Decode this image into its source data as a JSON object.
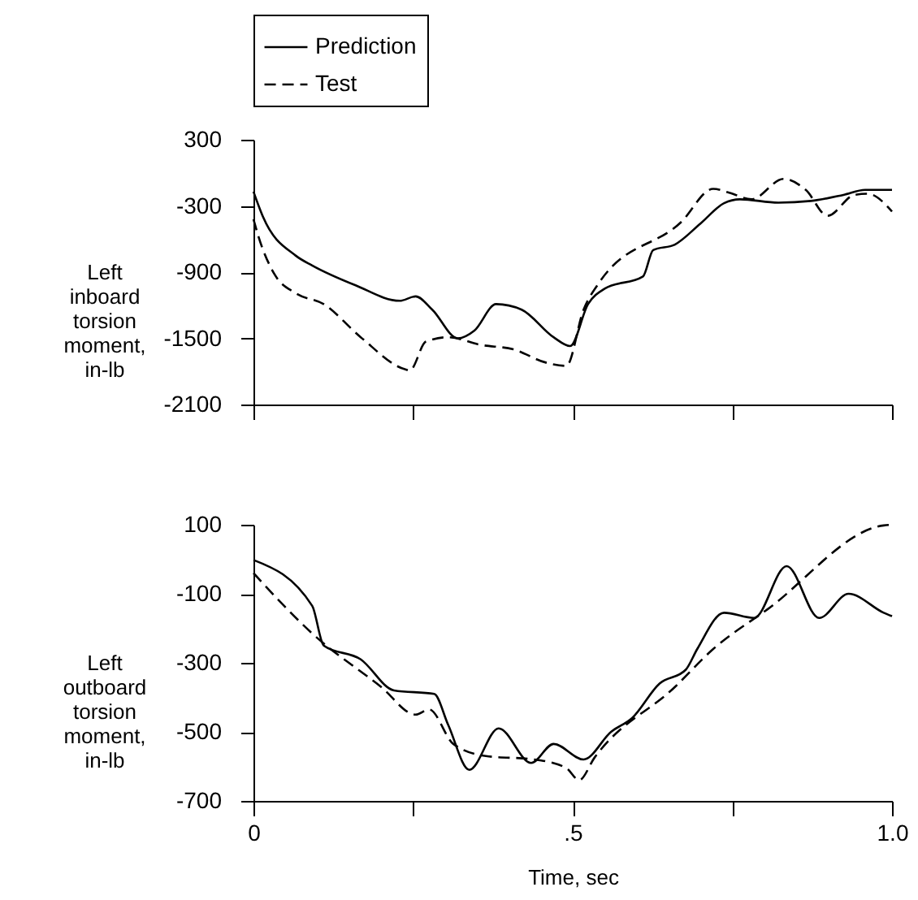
{
  "chart_data": [
    {
      "type": "line",
      "ylabel": "Left\ninboard\ntorsion\nmoment,\nin-lb",
      "legend": "top",
      "tick_labels": "y",
      "xlim": [
        0,
        1
      ],
      "xticks": [
        {
          "value": 0,
          "label": null
        },
        {
          "value": 0.25,
          "label": null
        },
        {
          "value": 0.5,
          "label": null
        },
        {
          "value": 0.75,
          "label": null
        },
        {
          "value": 1,
          "label": null
        }
      ],
      "ylim": [
        -2100,
        300
      ],
      "yticks": [
        300,
        -300,
        -900,
        -1500,
        -2100
      ],
      "grid": false,
      "series": [
        {
          "name": "Prediction",
          "color": "#000000",
          "line_style": "solid",
          "x": [
            0,
            0.015,
            0.066,
            0.092,
            0.16,
            0.229,
            0.254,
            0.28,
            0.32,
            0.346,
            0.38,
            0.42,
            0.47,
            0.496,
            0.524,
            0.55,
            0.61,
            0.626,
            0.66,
            0.7,
            0.737,
            0.762,
            0.822,
            0.873,
            0.924,
            0.958,
            1.0
          ],
          "values": [
            -170,
            -400,
            -750,
            -840,
            -1020,
            -1160,
            -1120,
            -1240,
            -1500,
            -1430,
            -1190,
            -1240,
            -1490,
            -1570,
            -1190,
            -1050,
            -940,
            -700,
            -650,
            -460,
            -275,
            -240,
            -270,
            -255,
            -200,
            -155,
            -155
          ]
        },
        {
          "name": "Test",
          "color": "#000000",
          "line_style": "dashed",
          "x": [
            0,
            0.008,
            0.033,
            0.066,
            0.11,
            0.168,
            0.237,
            0.245,
            0.27,
            0.305,
            0.356,
            0.407,
            0.458,
            0.49,
            0.517,
            0.542,
            0.67,
            0.72,
            0.745,
            0.78,
            0.83,
            0.865,
            0.899,
            0.941,
            0.962,
            1.0
          ],
          "values": [
            -420,
            -580,
            -920,
            -1090,
            -1190,
            -1490,
            -1780,
            -1790,
            -1530,
            -1490,
            -1560,
            -1600,
            -1720,
            -1750,
            -1240,
            -990,
            -445,
            -145,
            -180,
            -240,
            -55,
            -155,
            -390,
            -200,
            -190,
            -350
          ]
        }
      ]
    },
    {
      "type": "line",
      "xlabel": "Time, sec",
      "ylabel": "Left\noutboard\ntorsion\nmoment,\nin-lb",
      "legend": false,
      "xlim": [
        0,
        1
      ],
      "xticks": [
        0,
        {
          "value": 0.25,
          "label": null
        },
        {
          "value": 0.5,
          "label": ".5"
        },
        {
          "value": 0.75,
          "label": null
        },
        {
          "value": 1,
          "label": "1.0"
        }
      ],
      "ylim": [
        -700,
        100
      ],
      "yticks": [
        100,
        -100,
        -300,
        -500,
        -700
      ],
      "grid": false,
      "series": [
        {
          "name": "Prediction",
          "color": "#000000",
          "line_style": "solid",
          "x": [
            0,
            0.092,
            0.11,
            0.168,
            0.22,
            0.283,
            0.305,
            0.338,
            0.384,
            0.435,
            0.47,
            0.517,
            0.56,
            0.593,
            0.636,
            0.677,
            0.695,
            0.737,
            0.784,
            0.835,
            0.886,
            0.932,
            0.987,
            1.0
          ],
          "values": [
            -2,
            -135,
            -250,
            -290,
            -380,
            -390,
            -480,
            -610,
            -490,
            -590,
            -535,
            -580,
            -500,
            -460,
            -360,
            -320,
            -260,
            -155,
            -170,
            -20,
            -170,
            -100,
            -155,
            -165
          ]
        },
        {
          "name": "Test",
          "color": "#000000",
          "line_style": "dashed",
          "x": [
            0,
            0.092,
            0.2,
            0.254,
            0.275,
            0.313,
            0.364,
            0.44,
            0.49,
            0.51,
            0.534,
            0.66,
            0.72,
            0.805,
            0.987,
            1.0
          ],
          "values": [
            -40,
            -215,
            -370,
            -450,
            -435,
            -535,
            -570,
            -580,
            -605,
            -640,
            -575,
            -370,
            -260,
            -145,
            98,
            100
          ]
        }
      ]
    }
  ]
}
